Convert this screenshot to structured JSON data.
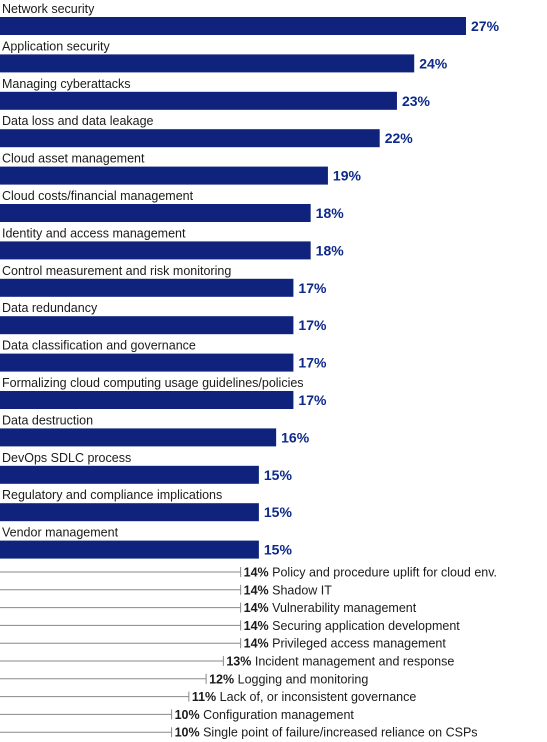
{
  "chart_data": {
    "type": "bar",
    "orientation": "horizontal",
    "title": "",
    "xlabel": "",
    "ylabel": "",
    "xlim": [
      0,
      27
    ],
    "value_suffix": "%",
    "colors": {
      "bar": "#0f237d",
      "value_label": "#0d2a8a",
      "leader_line": "#888888",
      "text": "#1b1b1b"
    },
    "bars": [
      {
        "label": "Network security",
        "value": 27
      },
      {
        "label": "Application security",
        "value": 24
      },
      {
        "label": "Managing cyberattacks",
        "value": 23
      },
      {
        "label": "Data loss and data leakage",
        "value": 22
      },
      {
        "label": "Cloud asset management",
        "value": 19
      },
      {
        "label": "Cloud costs/financial management",
        "value": 18
      },
      {
        "label": "Identity and access management",
        "value": 18
      },
      {
        "label": "Control measurement and risk monitoring",
        "value": 17
      },
      {
        "label": "Data redundancy",
        "value": 17
      },
      {
        "label": "Data classification and governance",
        "value": 17
      },
      {
        "label": "Formalizing cloud computing usage guidelines/policies",
        "value": 17
      },
      {
        "label": "Data destruction",
        "value": 16
      },
      {
        "label": "DevOps SDLC process",
        "value": 15
      },
      {
        "label": "Regulatory and compliance implications",
        "value": 15
      },
      {
        "label": "Vendor management",
        "value": 15
      }
    ],
    "minor_items": [
      {
        "label": "Policy and procedure uplift for cloud env.",
        "value": 14
      },
      {
        "label": "Shadow IT",
        "value": 14
      },
      {
        "label": "Vulnerability management",
        "value": 14
      },
      {
        "label": "Securing application development",
        "value": 14
      },
      {
        "label": "Privileged access management",
        "value": 14
      },
      {
        "label": "Incident management and response",
        "value": 13
      },
      {
        "label": "Logging and monitoring",
        "value": 12
      },
      {
        "label": "Lack of, or inconsistent governance",
        "value": 11
      },
      {
        "label": "Configuration management",
        "value": 10
      },
      {
        "label": "Single point of failure/increased reliance on CSPs",
        "value": 10
      }
    ]
  }
}
